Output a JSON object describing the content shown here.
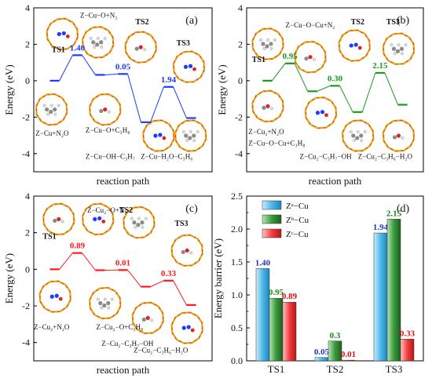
{
  "chart_data": [
    {
      "panel": "(a)",
      "type": "line",
      "ylabel": "Energy (eV)",
      "xlabel": "reaction path",
      "ylim": [
        -5,
        4
      ],
      "yticks": [
        "4",
        "2",
        "0",
        "-2",
        "-4"
      ],
      "line_color": "#1f3bff",
      "levels": [
        0.0,
        1.4,
        0.32,
        0.37,
        -2.28,
        -0.34,
        -2.05
      ],
      "barrier_labels": [
        {
          "text": "1.40",
          "at_level": 1
        },
        {
          "text": "0.05",
          "at_level": 3
        },
        {
          "text": "1.94",
          "at_level": 5
        }
      ],
      "labels": [
        "Z−Cu−O+N₂",
        "TS1",
        "TS2",
        "TS3",
        "Z−Cu+N₂O",
        "Z−Cu−O+C₃H₈",
        "Z−Cu−OH−C₃H₇",
        "Z−Cu−H₂O−C₃H₆"
      ]
    },
    {
      "panel": "(b)",
      "type": "line",
      "ylabel": "Energy (eV)",
      "xlabel": "reaction path",
      "ylim": [
        -5,
        4
      ],
      "yticks": [
        "4",
        "2",
        "0",
        "-2",
        "-4"
      ],
      "line_color": "#1a9c1a",
      "levels": [
        0.0,
        0.95,
        -0.58,
        -0.28,
        -1.72,
        0.43,
        -1.32
      ],
      "barrier_labels": [
        {
          "text": "0.95",
          "at_level": 1
        },
        {
          "text": "0.30",
          "at_level": 3
        },
        {
          "text": "2.15",
          "at_level": 5
        }
      ],
      "labels": [
        "Z−Cu−O−Cu+N₂",
        "TS1",
        "TS2",
        "TS3",
        "Z−Cu₂+N₂O",
        "Z−Cu−O−Cu+C₃H₈",
        "Z−Cu₂−C₃H₇−OH",
        "Z−Cu₂−C₃H₆−H₂O"
      ]
    },
    {
      "panel": "(c)",
      "type": "line",
      "ylabel": "Energy (eV)",
      "xlabel": "reaction path",
      "ylim": [
        -5,
        4
      ],
      "yticks": [
        "4",
        "2",
        "0",
        "-2",
        "-4"
      ],
      "line_color": "#ff1a1a",
      "levels": [
        0.0,
        0.89,
        -0.05,
        -0.04,
        -0.95,
        -0.62,
        -1.95
      ],
      "barrier_labels": [
        {
          "text": "0.89",
          "at_level": 1
        },
        {
          "text": "0.01",
          "at_level": 3
        },
        {
          "text": "0.33",
          "at_level": 5
        }
      ],
      "labels": [
        "Z−Cu₂−O+N₂",
        "TS2",
        "TS1",
        "TS3",
        "Z−Cu₂+N₂O",
        "Z−Cu₂−O+C₃H₈",
        "Z−Cu₂−C₃H₇−OH",
        "Z−Cu₂−C₃H₆−H₂O"
      ]
    },
    {
      "panel": "(d)",
      "type": "bar",
      "ylabel": "Energy barrier (eV)",
      "categories": [
        "TS1",
        "TS2",
        "TS3"
      ],
      "ylim": [
        0.0,
        2.5
      ],
      "yticks": [
        "0.0",
        "0.5",
        "1.0",
        "1.5",
        "2.0",
        "2.5"
      ],
      "legend_position": "top-left",
      "series": [
        {
          "name": "Zᵃ−Cu",
          "color": "#4fb8e8",
          "values": [
            1.4,
            0.05,
            1.94
          ],
          "value_labels": [
            "1.40",
            "0.05",
            "1.94"
          ],
          "label_color": "#2233cc"
        },
        {
          "name": "Zᵇ−Cu",
          "color": "#3a9a3a",
          "values": [
            0.95,
            0.3,
            2.15
          ],
          "value_labels": [
            "0.95",
            "0.3",
            "2.15"
          ],
          "label_color": "#1a8a1a"
        },
        {
          "name": "Zᶜ−Cu",
          "color": "#f04040",
          "values": [
            0.89,
            0.01,
            0.33
          ],
          "value_labels": [
            "0.89",
            "0.01",
            "0.33"
          ],
          "label_color": "#dd1111"
        }
      ]
    }
  ]
}
